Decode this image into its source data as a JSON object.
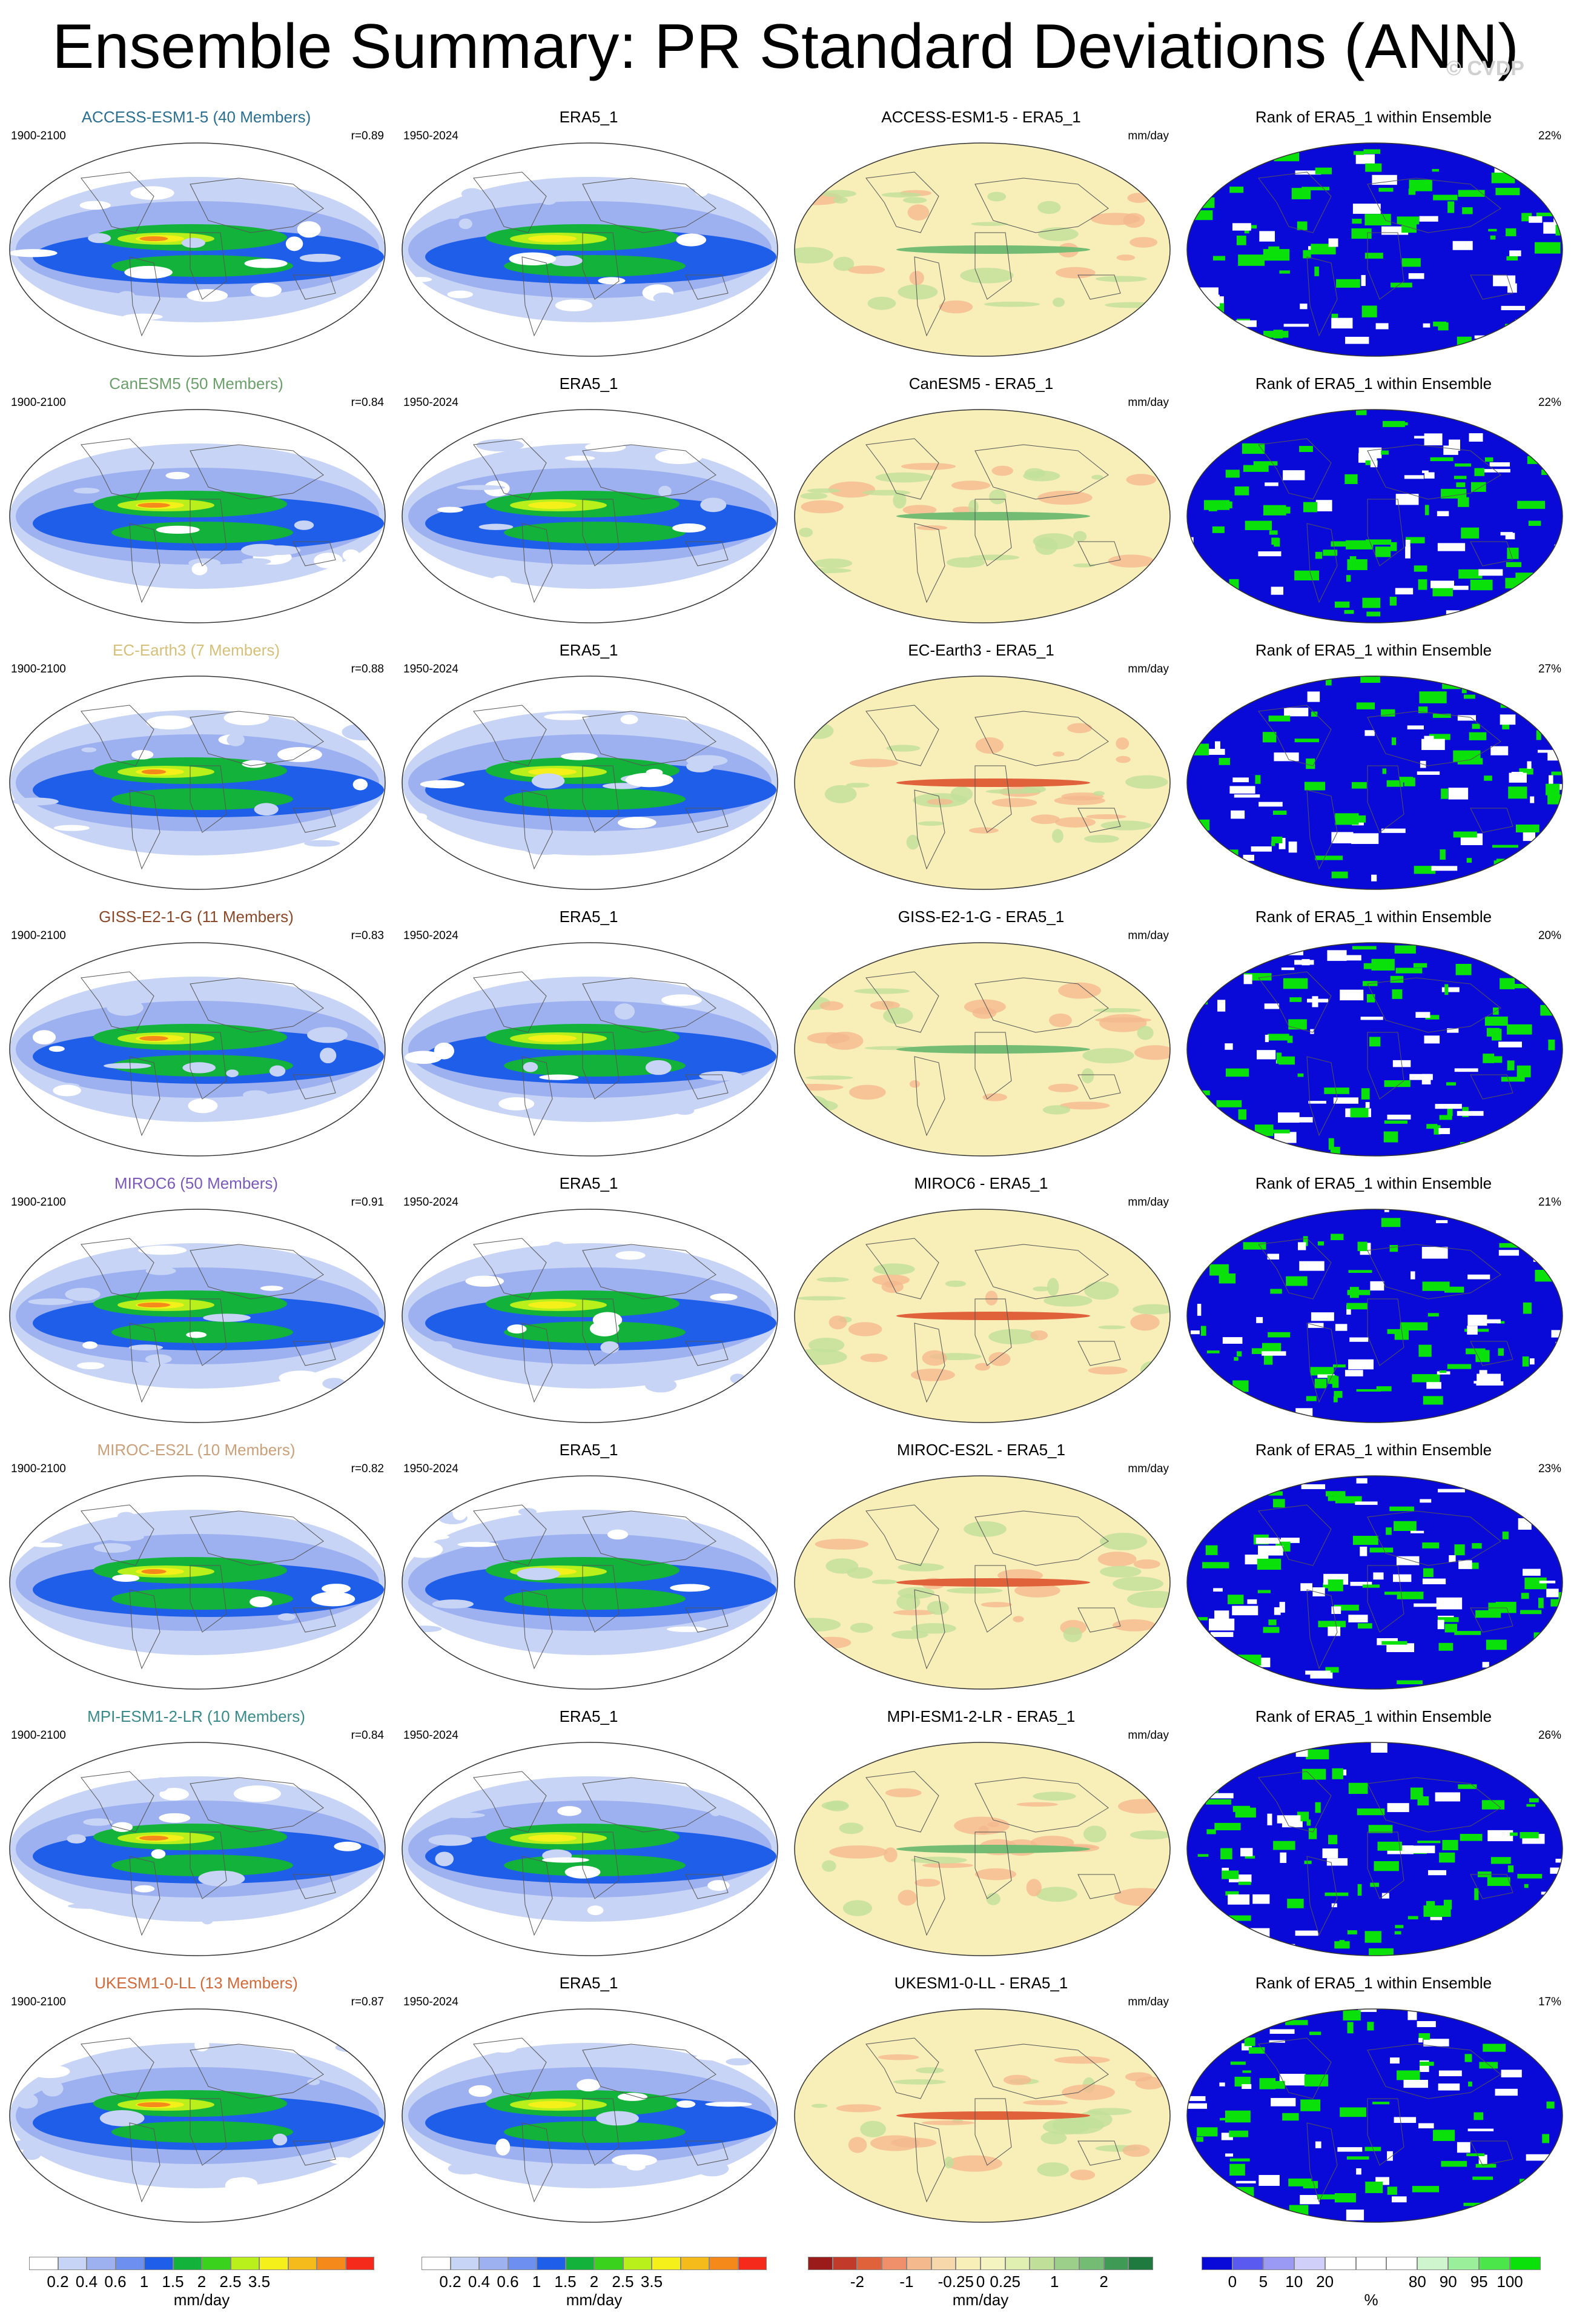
{
  "title": "Ensemble Summary: PR Standard Deviations (ANN)",
  "watermark": "© CVDP",
  "column_titles": {
    "obs": "ERA5_1",
    "rank": "Rank of ERA5_1 within Ensemble"
  },
  "labels": {
    "model_period": "1900-2100",
    "obs_period": "1950-2024",
    "units": "mm/day"
  },
  "rows": [
    {
      "model": "ACCESS-ESM1-5 (40 Members)",
      "color": "#2a6f8f",
      "r": "r=0.89",
      "diff": "ACCESS-ESM1-5 - ERA5_1",
      "rank_pct": "22%"
    },
    {
      "model": "CanESM5 (50 Members)",
      "color": "#6b9e6b",
      "r": "r=0.84",
      "diff": "CanESM5 - ERA5_1",
      "rank_pct": "22%"
    },
    {
      "model": "EC-Earth3 (7 Members)",
      "color": "#d4c07a",
      "r": "r=0.88",
      "diff": "EC-Earth3 - ERA5_1",
      "rank_pct": "27%"
    },
    {
      "model": "GISS-E2-1-G (11 Members)",
      "color": "#8a4a2a",
      "r": "r=0.83",
      "diff": "GISS-E2-1-G - ERA5_1",
      "rank_pct": "20%"
    },
    {
      "model": "MIROC6 (50 Members)",
      "color": "#7a5ab8",
      "r": "r=0.91",
      "diff": "MIROC6 - ERA5_1",
      "rank_pct": "21%"
    },
    {
      "model": "MIROC-ES2L (10 Members)",
      "color": "#c9a07a",
      "r": "r=0.82",
      "diff": "MIROC-ES2L - ERA5_1",
      "rank_pct": "23%"
    },
    {
      "model": "MPI-ESM1-2-LR (10 Members)",
      "color": "#3a8a8a",
      "r": "r=0.84",
      "diff": "MPI-ESM1-2-LR - ERA5_1",
      "rank_pct": "26%"
    },
    {
      "model": "UKESM1-0-LL (13 Members)",
      "color": "#d06a3a",
      "r": "r=0.87",
      "diff": "UKESM1-0-LL - ERA5_1",
      "rank_pct": "17%"
    }
  ],
  "colorbars": [
    {
      "unit": "mm/day",
      "colors": [
        "#ffffff",
        "#c7d4f5",
        "#9db0ef",
        "#6d8ff0",
        "#1f5ee8",
        "#13b23a",
        "#3ad21c",
        "#b9f01c",
        "#f5f01a",
        "#f5bb1a",
        "#f58a1a",
        "#f52a1a"
      ],
      "labels": [
        "0.2",
        "0.4",
        "0.6",
        "1",
        "1.5",
        "2",
        "2.5",
        "3.5"
      ]
    },
    {
      "unit": "mm/day",
      "colors": [
        "#ffffff",
        "#c7d4f5",
        "#9db0ef",
        "#6d8ff0",
        "#1f5ee8",
        "#13b23a",
        "#3ad21c",
        "#b9f01c",
        "#f5f01a",
        "#f5bb1a",
        "#f58a1a",
        "#f52a1a"
      ],
      "labels": [
        "0.2",
        "0.4",
        "0.6",
        "1",
        "1.5",
        "2",
        "2.5",
        "3.5"
      ]
    },
    {
      "unit": "mm/day",
      "colors": [
        "#9b1a1a",
        "#c23a2a",
        "#e0623a",
        "#f0906a",
        "#f5b98e",
        "#f7d8aa",
        "#f7eeb8",
        "#f3f4c0",
        "#dff0b0",
        "#c0e09a",
        "#9cd08a",
        "#74bb74",
        "#3e9a55",
        "#1e7a3e"
      ],
      "labels": [
        "-2",
        "-1",
        "-0.25",
        "0",
        "0.25",
        "1",
        "2"
      ]
    },
    {
      "unit": "%",
      "colors": [
        "#0a0ad8",
        "#5a5af0",
        "#9a9af5",
        "#cfcffa",
        "#ffffff",
        "#ffffff",
        "#ffffff",
        "#cff5cf",
        "#9af09a",
        "#4ae64a",
        "#0ae00a"
      ],
      "labels": [
        "0",
        "5",
        "10",
        "20",
        "80",
        "90",
        "95",
        "100"
      ]
    }
  ]
}
